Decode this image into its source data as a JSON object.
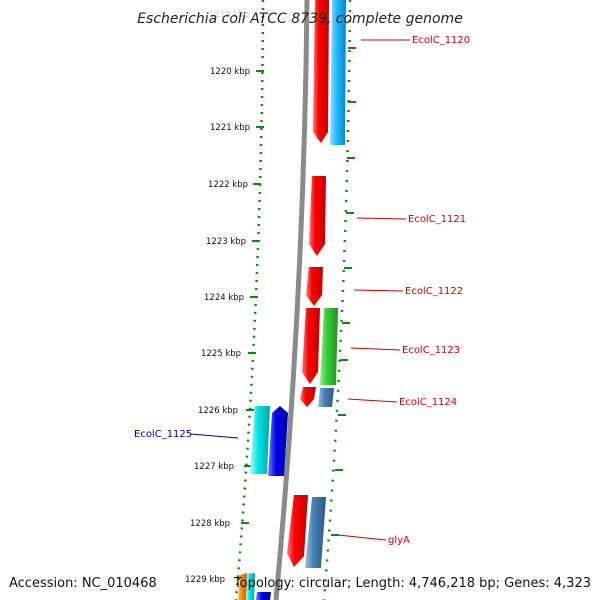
{
  "title": "Escherichia coli ATCC 8739, complete genome",
  "footer": {
    "accession": "Accession: NC_010468",
    "stats": "Topology: circular; Length: 4,746,218 bp; Genes: 4,323"
  },
  "scale": {
    "ticks": [
      "1219 kbp",
      "1220 kbp",
      "1221 kbp",
      "1222 kbp",
      "1223 kbp",
      "1224 kbp",
      "1225 kbp",
      "1226 kbp",
      "1227 kbp",
      "1228 kbp",
      "1229 kbp"
    ]
  },
  "genes": {
    "EcolC_1120": {
      "label": "EcolC_1120",
      "color": "#cc0000"
    },
    "EcolC_1121": {
      "label": "EcolC_1121",
      "color": "#cc0000"
    },
    "EcolC_1122": {
      "label": "EcolC_1122",
      "color": "#cc0000"
    },
    "EcolC_1123": {
      "label": "EcolC_1123",
      "color": "#cc0000"
    },
    "EcolC_1124": {
      "label": "EcolC_1124",
      "color": "#cc0000"
    },
    "EcolC_1125": {
      "label": "EcolC_1125",
      "color": "#000099"
    },
    "glyA": {
      "label": "glyA",
      "color": "#cc0000"
    }
  },
  "colors": {
    "backbone": "#888888",
    "ticks": "#118811",
    "red": "#ff0000",
    "cyan": "#22bbff",
    "green": "#33cc33",
    "steel": "#4682b4",
    "aqua": "#00e5e5",
    "blue": "#0000ee",
    "orange": "#ff8800"
  }
}
